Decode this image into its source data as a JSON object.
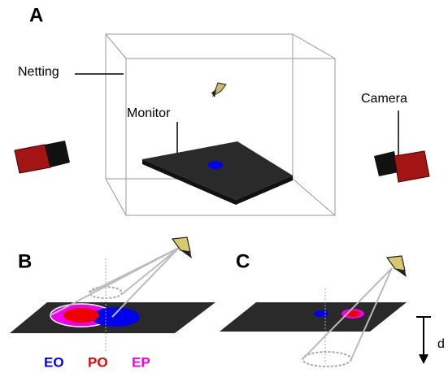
{
  "panels": [
    {
      "label": "A"
    },
    {
      "label": "B"
    },
    {
      "label": "C"
    }
  ],
  "labels": {
    "netting": "Netting",
    "monitor": "Monitor",
    "camera": "Camera",
    "distance": "d"
  },
  "legend": [
    {
      "label": "EO",
      "color": "#0000ee"
    },
    {
      "label": "PO",
      "color": "#ee0000"
    },
    {
      "label": "EP",
      "color": "#ee00ee"
    }
  ]
}
